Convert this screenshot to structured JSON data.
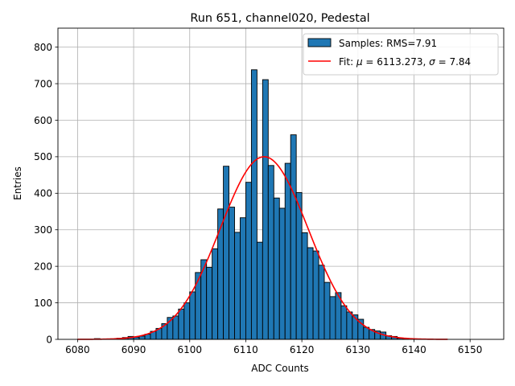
{
  "chart_data": {
    "type": "bar",
    "title": "Run 651, channel020, Pedestal",
    "xlabel": "ADC Counts",
    "ylabel": "Entries",
    "xlim": [
      6076.5,
      6156
    ],
    "ylim": [
      0,
      852
    ],
    "xticks": [
      "6080",
      "6090",
      "6100",
      "6110",
      "6120",
      "6130",
      "6140",
      "6150"
    ],
    "yticks": [
      "0",
      "100",
      "200",
      "300",
      "400",
      "500",
      "600",
      "700",
      "800"
    ],
    "grid": true,
    "legend_position": "top-right",
    "bin_width": 1,
    "bins": [
      {
        "x": 6083,
        "count": 2
      },
      {
        "x": 6084,
        "count": 1
      },
      {
        "x": 6087,
        "count": 3
      },
      {
        "x": 6088,
        "count": 5
      },
      {
        "x": 6089,
        "count": 8
      },
      {
        "x": 6090,
        "count": 6
      },
      {
        "x": 6091,
        "count": 9
      },
      {
        "x": 6092,
        "count": 14
      },
      {
        "x": 6093,
        "count": 22
      },
      {
        "x": 6094,
        "count": 30
      },
      {
        "x": 6095,
        "count": 43
      },
      {
        "x": 6096,
        "count": 60
      },
      {
        "x": 6097,
        "count": 64
      },
      {
        "x": 6098,
        "count": 83
      },
      {
        "x": 6099,
        "count": 100
      },
      {
        "x": 6100,
        "count": 130
      },
      {
        "x": 6101,
        "count": 183
      },
      {
        "x": 6102,
        "count": 218
      },
      {
        "x": 6103,
        "count": 197
      },
      {
        "x": 6104,
        "count": 248
      },
      {
        "x": 6105,
        "count": 357
      },
      {
        "x": 6106,
        "count": 474
      },
      {
        "x": 6107,
        "count": 362
      },
      {
        "x": 6108,
        "count": 293
      },
      {
        "x": 6109,
        "count": 333
      },
      {
        "x": 6110,
        "count": 430
      },
      {
        "x": 6111,
        "count": 738
      },
      {
        "x": 6112,
        "count": 266
      },
      {
        "x": 6113,
        "count": 711
      },
      {
        "x": 6114,
        "count": 476
      },
      {
        "x": 6115,
        "count": 387
      },
      {
        "x": 6116,
        "count": 359
      },
      {
        "x": 6117,
        "count": 482
      },
      {
        "x": 6118,
        "count": 560
      },
      {
        "x": 6119,
        "count": 402
      },
      {
        "x": 6120,
        "count": 292
      },
      {
        "x": 6121,
        "count": 251
      },
      {
        "x": 6122,
        "count": 242
      },
      {
        "x": 6123,
        "count": 203
      },
      {
        "x": 6124,
        "count": 156
      },
      {
        "x": 6125,
        "count": 117
      },
      {
        "x": 6126,
        "count": 128
      },
      {
        "x": 6127,
        "count": 92
      },
      {
        "x": 6128,
        "count": 75
      },
      {
        "x": 6129,
        "count": 67
      },
      {
        "x": 6130,
        "count": 55
      },
      {
        "x": 6131,
        "count": 33
      },
      {
        "x": 6132,
        "count": 27
      },
      {
        "x": 6133,
        "count": 23
      },
      {
        "x": 6134,
        "count": 20
      },
      {
        "x": 6135,
        "count": 10
      },
      {
        "x": 6136,
        "count": 8
      },
      {
        "x": 6137,
        "count": 3
      },
      {
        "x": 6138,
        "count": 2
      },
      {
        "x": 6141,
        "count": 1
      }
    ],
    "series": [
      {
        "name": "Samples",
        "kind": "histogram",
        "rms": 7.91,
        "color": "#1f77b4",
        "edgecolor": "#000000"
      },
      {
        "name": "Fit",
        "kind": "gaussian",
        "mu": 6113.273,
        "sigma": 7.84,
        "amplitude": 500,
        "x_range": [
          6080,
          6146
        ],
        "color": "#ff0000"
      }
    ],
    "legend": {
      "samples_label": "Samples: RMS=7.91",
      "fit_label_prefix": "Fit: ",
      "mu_symbol": "μ",
      "fit_label_mid": " = 6113.273, ",
      "sigma_symbol": "σ",
      "fit_label_end": " = 7.84"
    }
  }
}
